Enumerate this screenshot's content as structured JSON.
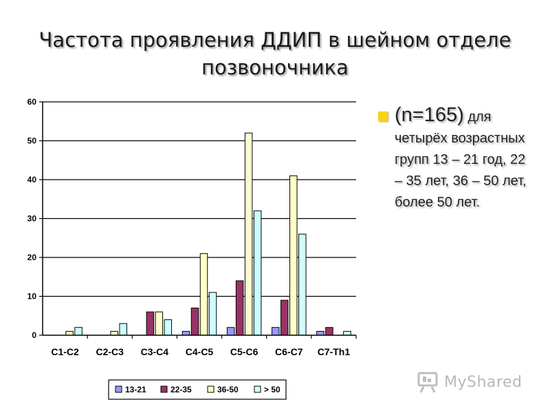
{
  "title": {
    "line1": "Частота проявления ДДИП в шейном отделе",
    "line2": "позвоночника"
  },
  "note": {
    "sample": "(n=165)",
    "text": "для четырёх возрастных групп 13 – 21 год, 22 – 35 лет, 36 – 50 лет, более 50 лет."
  },
  "logo": {
    "text": "MyShared",
    "icon": "projector-icon"
  },
  "chart_data": {
    "type": "bar",
    "title": "",
    "xlabel": "",
    "ylabel": "",
    "ylim": [
      0,
      60
    ],
    "yticks": [
      0,
      10,
      20,
      30,
      40,
      50,
      60
    ],
    "grid": true,
    "legend_position": "bottom",
    "categories": [
      "C1-C2",
      "C2-C3",
      "C3-C4",
      "C4-C5",
      "C5-C6",
      "C6-C7",
      "C7-Th1"
    ],
    "series": [
      {
        "name": "13-21",
        "color": "#9999ff",
        "values": [
          0,
          0,
          0,
          1,
          2,
          2,
          1
        ]
      },
      {
        "name": "22-35",
        "color": "#993366",
        "values": [
          0,
          0,
          6,
          7,
          14,
          9,
          2
        ]
      },
      {
        "name": "36-50",
        "color": "#ffffcc",
        "values": [
          1,
          1,
          6,
          21,
          52,
          41,
          0
        ]
      },
      {
        "name": "> 50",
        "color": "#ccffff",
        "values": [
          2,
          3,
          4,
          11,
          32,
          26,
          1
        ]
      }
    ]
  }
}
